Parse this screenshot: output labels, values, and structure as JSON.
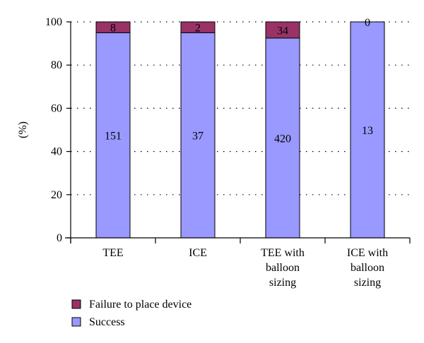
{
  "chart_data": {
    "type": "bar",
    "stacked": true,
    "ylabel": "(%)",
    "ylim": [
      0,
      100
    ],
    "yticks": [
      0,
      20,
      40,
      60,
      80,
      100
    ],
    "grid": "dotted horizontal",
    "legend_position": "bottom-left",
    "categories": [
      [
        "TEE"
      ],
      [
        "ICE"
      ],
      [
        "TEE with",
        "balloon",
        "sizing"
      ],
      [
        "ICE with",
        "balloon",
        "sizing"
      ]
    ],
    "series": [
      {
        "name": "Success",
        "color": "#9999ff",
        "values": [
          95,
          95,
          92.5,
          100
        ],
        "labels": [
          "151",
          "37",
          "420",
          "13"
        ]
      },
      {
        "name": "Failure to place device",
        "color": "#993366",
        "values": [
          5,
          5,
          7.5,
          0
        ],
        "labels": [
          "8",
          "2",
          "34",
          "0"
        ]
      }
    ],
    "legend": [
      "Failure to place device",
      "Success"
    ]
  }
}
